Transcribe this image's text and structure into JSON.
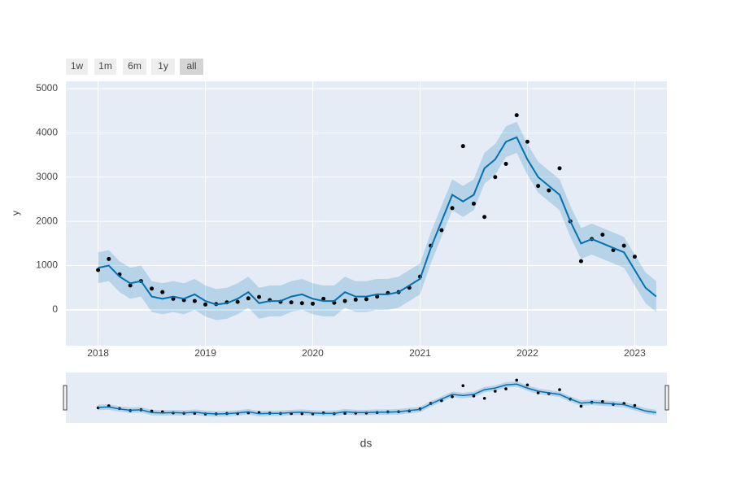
{
  "chart_data": {
    "type": "line",
    "x_label": "ds",
    "y_label": "y",
    "range_buttons": [
      "1w",
      "1m",
      "6m",
      "1y",
      "all"
    ],
    "active_button": 4,
    "xlim": [
      2017.7,
      2023.3
    ],
    "xticks": [
      2018,
      2019,
      2020,
      2021,
      2022,
      2023
    ],
    "ylim": [
      -810,
      5165
    ],
    "yticks": [
      0,
      1000,
      2000,
      3000,
      4000,
      5000
    ],
    "grid": true,
    "points": {
      "color": "#000000",
      "x": [
        2018.0,
        2018.1,
        2018.2,
        2018.3,
        2018.4,
        2018.5,
        2018.6,
        2018.7,
        2018.8,
        2018.9,
        2019.0,
        2019.1,
        2019.2,
        2019.3,
        2019.4,
        2019.5,
        2019.6,
        2019.7,
        2019.8,
        2019.9,
        2020.0,
        2020.1,
        2020.2,
        2020.3,
        2020.4,
        2020.5,
        2020.6,
        2020.7,
        2020.8,
        2020.9,
        2021.0,
        2021.1,
        2021.2,
        2021.3,
        2021.4,
        2021.5,
        2021.6,
        2021.7,
        2021.8,
        2021.9,
        2022.0,
        2022.1,
        2022.2,
        2022.3,
        2022.4,
        2022.5,
        2022.6,
        2022.7,
        2022.8,
        2022.9,
        2023.0
      ],
      "values": [
        900,
        1150,
        800,
        550,
        650,
        480,
        400,
        250,
        220,
        200,
        120,
        130,
        170,
        180,
        260,
        290,
        220,
        180,
        170,
        150,
        140,
        250,
        160,
        200,
        230,
        240,
        300,
        380,
        400,
        500,
        750,
        1450,
        1800,
        2300,
        3700,
        2400,
        2100,
        3000,
        3300,
        4400,
        3800,
        2800,
        2700,
        3200,
        2000,
        1100,
        1600,
        1700,
        1350,
        1450,
        1200
      ]
    },
    "forecast": {
      "color": "#0072B2",
      "band_color": "rgba(0,114,178,0.2)",
      "x": [
        2018.0,
        2018.1,
        2018.2,
        2018.3,
        2018.4,
        2018.5,
        2018.6,
        2018.7,
        2018.8,
        2018.9,
        2019.0,
        2019.1,
        2019.2,
        2019.3,
        2019.4,
        2019.5,
        2019.6,
        2019.7,
        2019.8,
        2019.9,
        2020.0,
        2020.1,
        2020.2,
        2020.3,
        2020.4,
        2020.5,
        2020.6,
        2020.7,
        2020.8,
        2020.9,
        2021.0,
        2021.1,
        2021.2,
        2021.3,
        2021.4,
        2021.5,
        2021.6,
        2021.7,
        2021.8,
        2021.9,
        2022.0,
        2022.1,
        2022.2,
        2022.3,
        2022.4,
        2022.5,
        2022.6,
        2022.7,
        2022.8,
        2022.9,
        2023.0,
        2023.1,
        2023.2
      ],
      "values": [
        950,
        1000,
        750,
        600,
        650,
        300,
        250,
        300,
        250,
        350,
        200,
        120,
        150,
        250,
        400,
        150,
        200,
        200,
        300,
        350,
        250,
        200,
        200,
        400,
        300,
        300,
        350,
        350,
        400,
        550,
        700,
        1400,
        2000,
        2600,
        2450,
        2600,
        3200,
        3400,
        3800,
        3900,
        3400,
        3000,
        2800,
        2600,
        2000,
        1500,
        1600,
        1500,
        1400,
        1300,
        900,
        500,
        300
      ],
      "lower": [
        600,
        650,
        400,
        250,
        300,
        -50,
        -100,
        -50,
        -100,
        0,
        -150,
        -230,
        -200,
        -100,
        50,
        -200,
        -150,
        -150,
        -50,
        0,
        -100,
        -150,
        -150,
        50,
        -50,
        -50,
        0,
        0,
        50,
        200,
        350,
        1050,
        1650,
        2250,
        2100,
        2250,
        2850,
        3050,
        3450,
        3550,
        3050,
        2650,
        2450,
        2250,
        1650,
        1150,
        1250,
        1150,
        1050,
        950,
        550,
        150,
        -50
      ],
      "upper": [
        1300,
        1350,
        1100,
        950,
        1000,
        650,
        600,
        650,
        600,
        700,
        550,
        470,
        500,
        600,
        750,
        500,
        550,
        550,
        650,
        700,
        600,
        550,
        550,
        750,
        650,
        650,
        700,
        700,
        750,
        900,
        1050,
        1750,
        2350,
        2950,
        2800,
        2950,
        3550,
        3750,
        4150,
        4250,
        3750,
        3350,
        3150,
        2950,
        2350,
        1850,
        1950,
        1850,
        1750,
        1650,
        1250,
        850,
        650
      ]
    }
  }
}
